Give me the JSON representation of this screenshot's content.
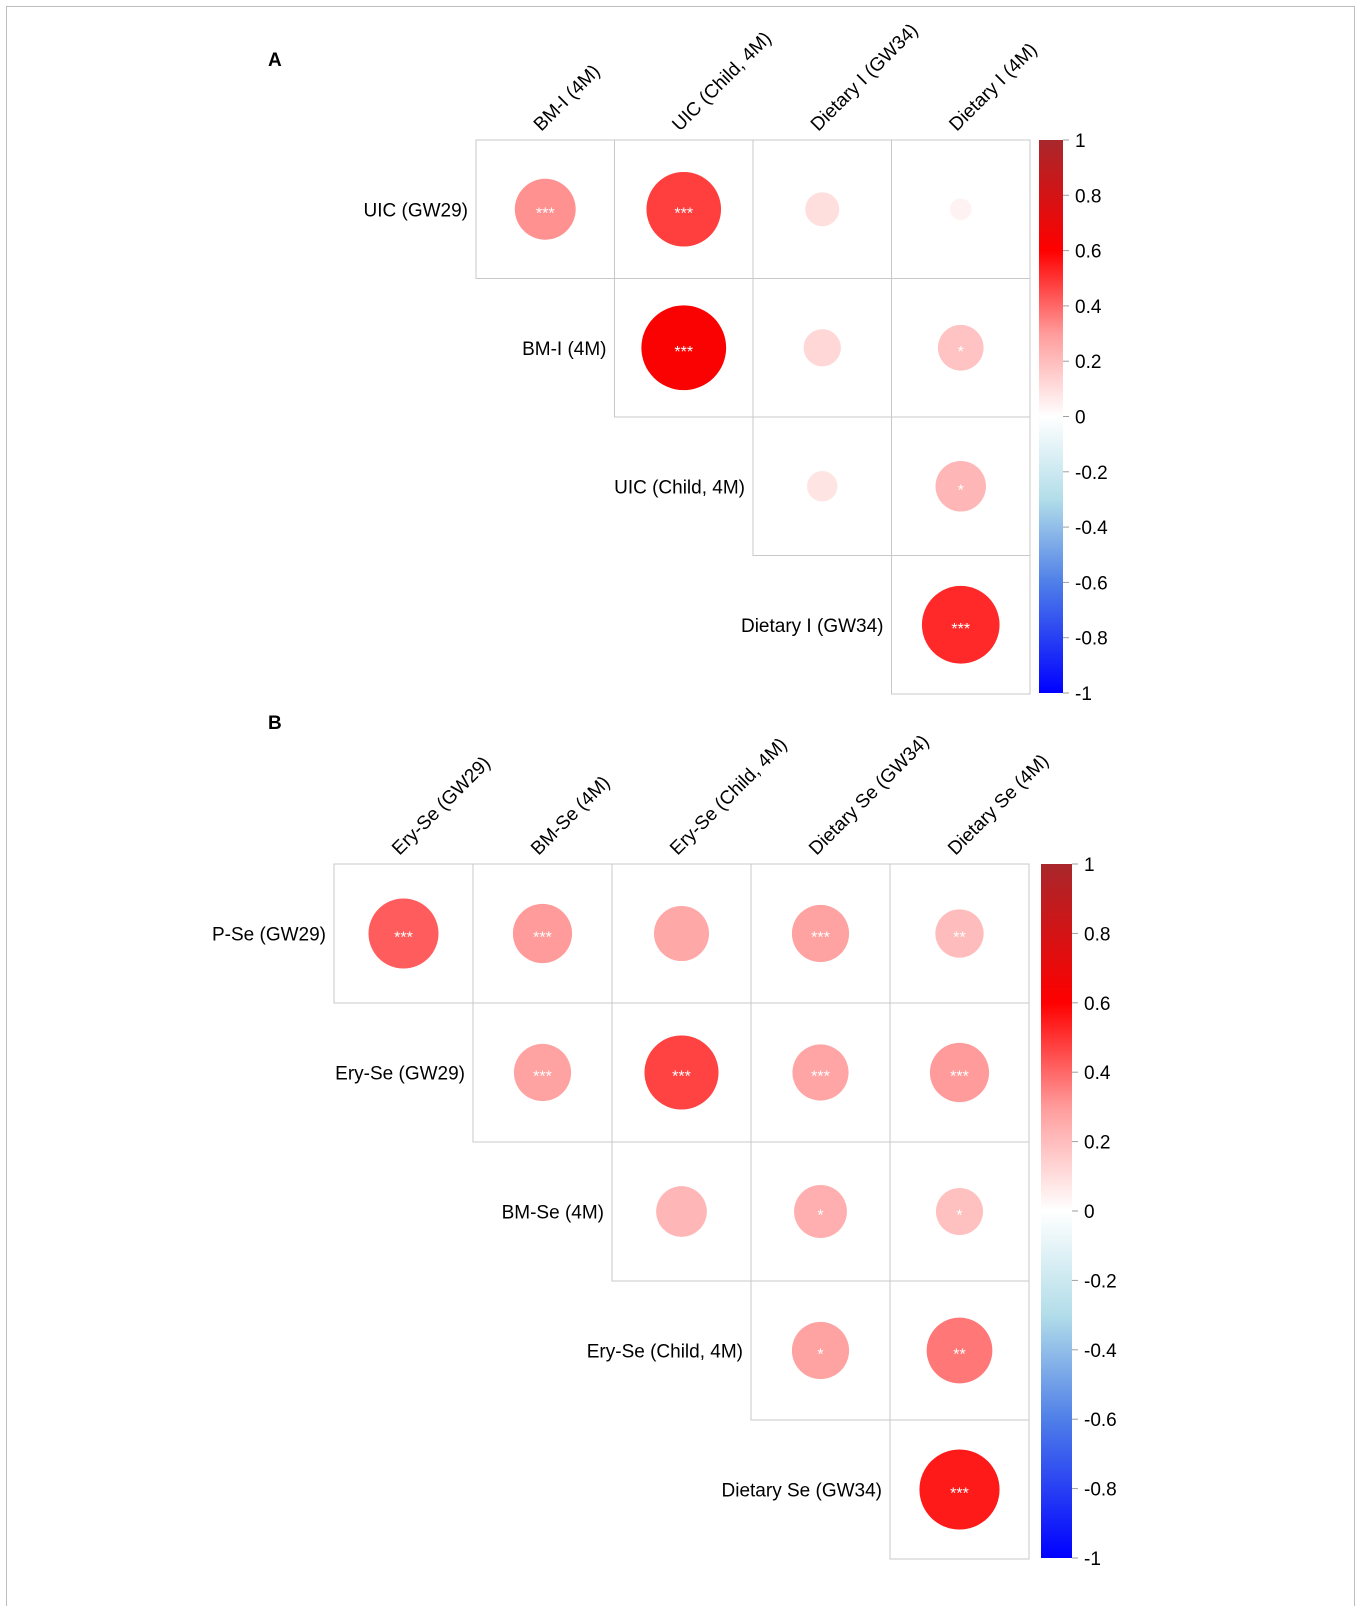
{
  "colors": {
    "scale_neg1": "#0000ff",
    "scale_neg06": "#4f7fe8",
    "scale_neg03": "#b2dde9",
    "scale_0": "#ffffff",
    "scale_pos03": "#ff9b9b",
    "scale_pos06": "#ff0000",
    "scale_pos1": "#a8272b",
    "grid": "#c8c8c8",
    "star": "#ffffff"
  },
  "chart_data": [
    {
      "type": "heatmap",
      "panel": "A",
      "columns": [
        "BM-I (4M)",
        "UIC (Child, 4M)",
        "Dietary I (GW34)",
        "Dietary I (4M)"
      ],
      "rows": [
        "UIC (GW29)",
        "BM-I (4M)",
        "UIC (Child, 4M)",
        "Dietary I (GW34)"
      ],
      "upper_triangular": true,
      "correlations": [
        [
          0.32,
          0.48,
          0.1,
          0.04
        ],
        [
          null,
          0.62,
          0.12,
          0.18
        ],
        [
          null,
          null,
          0.08,
          0.22
        ],
        [
          null,
          null,
          null,
          0.52
        ]
      ],
      "significance": [
        [
          "***",
          "***",
          "",
          ""
        ],
        [
          null,
          "***",
          "",
          "*"
        ],
        [
          null,
          null,
          "",
          "*"
        ],
        [
          null,
          null,
          null,
          "***"
        ]
      ],
      "colorbar": {
        "range": [
          -1,
          1
        ],
        "ticks": [
          "1",
          "0.8",
          "0.6",
          "0.4",
          "0.2",
          "0",
          "-0.2",
          "-0.4",
          "-0.6",
          "-0.8",
          "-1"
        ]
      }
    },
    {
      "type": "heatmap",
      "panel": "B",
      "columns": [
        "Ery-Se (GW29)",
        "BM-Se (4M)",
        "Ery-Se (Child, 4M)",
        "Dietary Se (GW34)",
        "Dietary Se (4M)"
      ],
      "rows": [
        "P-Se (GW29)",
        "Ery-Se (GW29)",
        "BM-Se (4M)",
        "Ery-Se (Child, 4M)",
        "Dietary Se (GW34)"
      ],
      "upper_triangular": true,
      "correlations": [
        [
          0.42,
          0.3,
          0.26,
          0.28,
          0.2
        ],
        [
          null,
          0.28,
          0.47,
          0.27,
          0.3
        ],
        [
          null,
          null,
          0.22,
          0.24,
          0.19
        ],
        [
          null,
          null,
          null,
          0.28,
          0.37
        ],
        [
          null,
          null,
          null,
          null,
          0.55
        ]
      ],
      "significance": [
        [
          "***",
          "***",
          "",
          "***",
          "**"
        ],
        [
          null,
          "***",
          "***",
          "***",
          "***"
        ],
        [
          null,
          null,
          "",
          "*",
          "*"
        ],
        [
          null,
          null,
          null,
          "*",
          "**"
        ],
        [
          null,
          null,
          null,
          null,
          "***"
        ]
      ],
      "colorbar": {
        "range": [
          -1,
          1
        ],
        "ticks": [
          "1",
          "0.8",
          "0.6",
          "0.4",
          "0.2",
          "0",
          "-0.2",
          "-0.4",
          "-0.6",
          "-0.8",
          "-1"
        ]
      }
    }
  ]
}
